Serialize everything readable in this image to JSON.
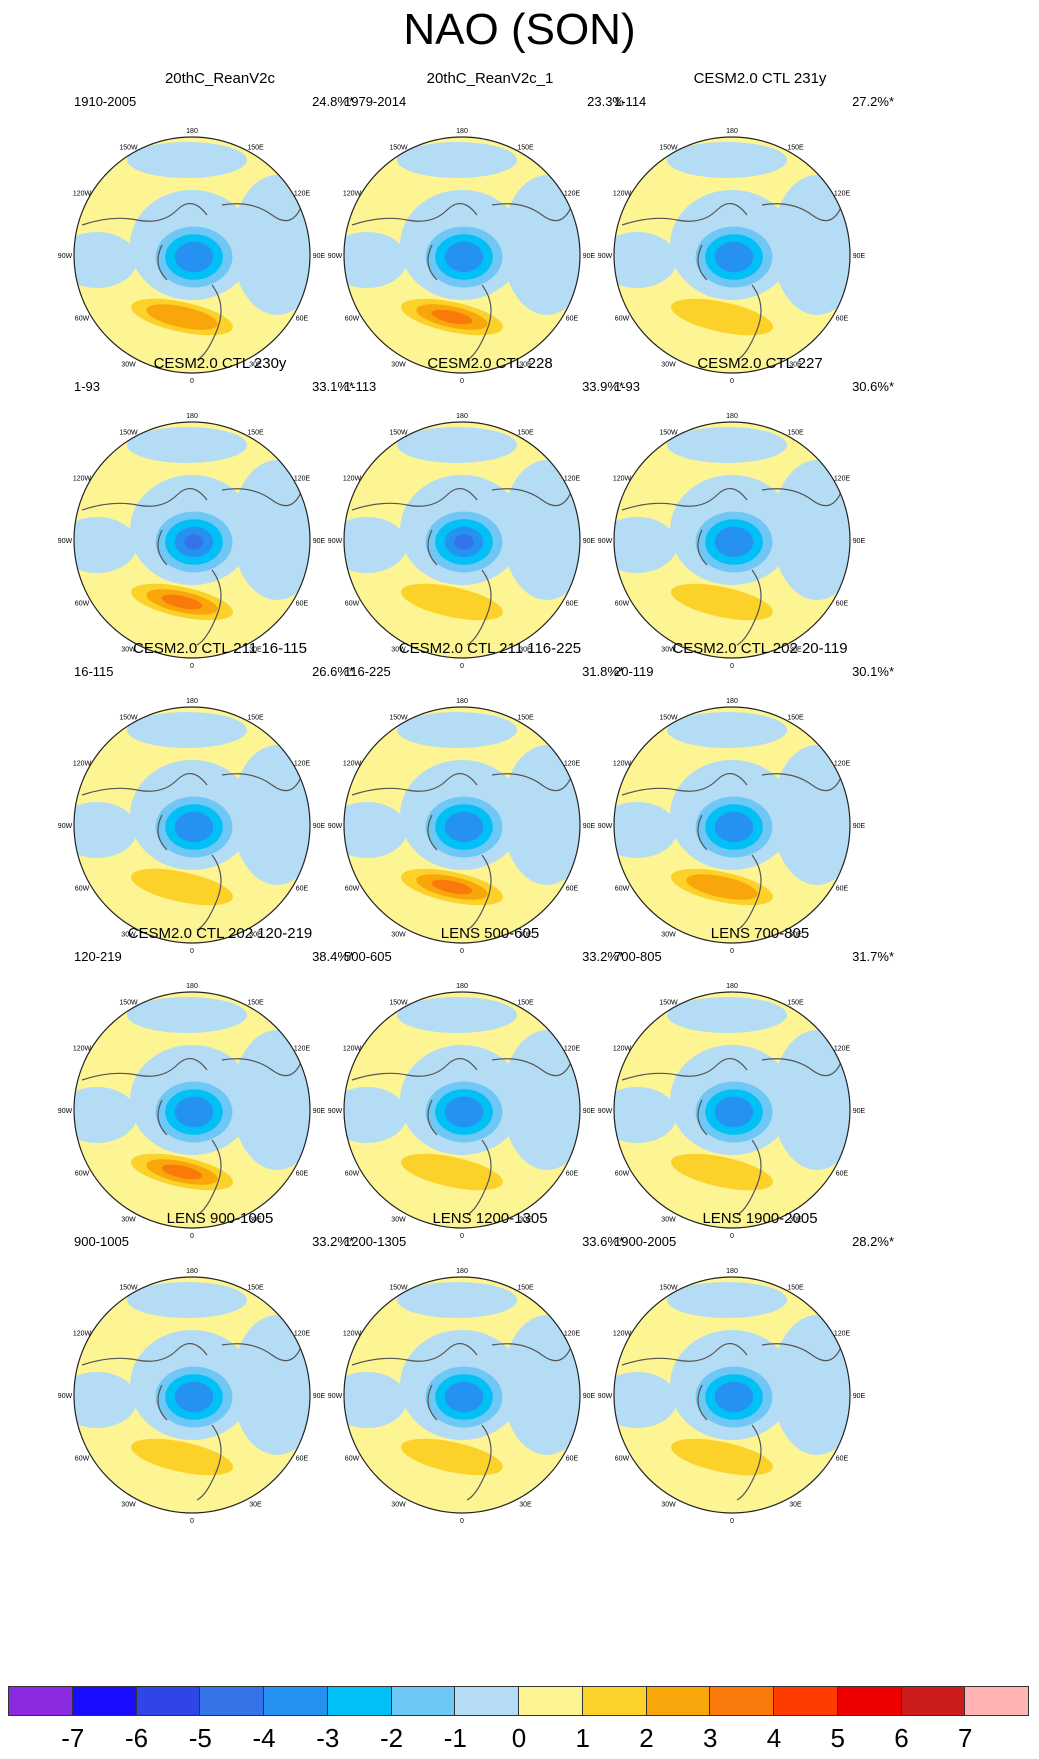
{
  "title": "NAO (SON)",
  "longitude_labels": [
    "180",
    "150E",
    "120E",
    "90E",
    "60E",
    "30E",
    "0",
    "30W",
    "60W",
    "90W",
    "120W",
    "150W"
  ],
  "panels": [
    {
      "title": "20thC_ReanV2c",
      "period": "1910-2005",
      "variance": "24.8%*",
      "blue_strength": 3,
      "orange_strength": 2
    },
    {
      "title": "20thC_ReanV2c_1",
      "period": "1979-2014",
      "variance": "23.3%",
      "blue_strength": 3,
      "orange_strength": 3
    },
    {
      "title": "CESM2.0 CTL 231y",
      "period": "1-114",
      "variance": "27.2%*",
      "blue_strength": 3,
      "orange_strength": 1
    },
    {
      "title": "CESM2.0 CTL 230y",
      "period": "1-93",
      "variance": "33.1%*",
      "blue_strength": 4,
      "orange_strength": 3
    },
    {
      "title": "CESM2.0 CTL 228",
      "period": "1-113",
      "variance": "33.9%*",
      "blue_strength": 4,
      "orange_strength": 1
    },
    {
      "title": "CESM2.0 CTL 227",
      "period": "1-93",
      "variance": "30.6%*",
      "blue_strength": 3,
      "orange_strength": 1
    },
    {
      "title": "CESM2.0 CTL 211 16-115",
      "period": "16-115",
      "variance": "26.6%*",
      "blue_strength": 3,
      "orange_strength": 1
    },
    {
      "title": "CESM2.0 CTL 211 116-225",
      "period": "116-225",
      "variance": "31.8%*",
      "blue_strength": 3,
      "orange_strength": 3
    },
    {
      "title": "CESM2.0 CTL 202 20-119",
      "period": "20-119",
      "variance": "30.1%*",
      "blue_strength": 3,
      "orange_strength": 2
    },
    {
      "title": "CESM2.0 CTL 202 120-219",
      "period": "120-219",
      "variance": "38.4%*",
      "blue_strength": 3,
      "orange_strength": 3
    },
    {
      "title": "LENS 500-605",
      "period": "500-605",
      "variance": "33.2%*",
      "blue_strength": 3,
      "orange_strength": 1
    },
    {
      "title": "LENS 700-805",
      "period": "700-805",
      "variance": "31.7%*",
      "blue_strength": 3,
      "orange_strength": 1
    },
    {
      "title": "LENS 900-1005",
      "period": "900-1005",
      "variance": "33.2%*",
      "blue_strength": 3,
      "orange_strength": 1
    },
    {
      "title": "LENS 1200-1305",
      "period": "1200-1305",
      "variance": "33.6%*",
      "blue_strength": 3,
      "orange_strength": 1
    },
    {
      "title": "LENS 1900-2005",
      "period": "1900-2005",
      "variance": "28.2%*",
      "blue_strength": 3,
      "orange_strength": 1
    }
  ],
  "colorbar": {
    "colors": [
      "#8a2be2",
      "#1a0dff",
      "#2f45e6",
      "#3573e8",
      "#2592f2",
      "#00c0f6",
      "#6ec7f4",
      "#b4dcf4",
      "#fdf593",
      "#fcd22a",
      "#f9a60a",
      "#f97a0a",
      "#ff3c00",
      "#ee0000",
      "#cc1c1c",
      "#ffb3b3"
    ],
    "ticks": [
      "-7",
      "-6",
      "-5",
      "-4",
      "-3",
      "-2",
      "-1",
      "0",
      "1",
      "2",
      "3",
      "4",
      "5",
      "6",
      "7"
    ]
  }
}
